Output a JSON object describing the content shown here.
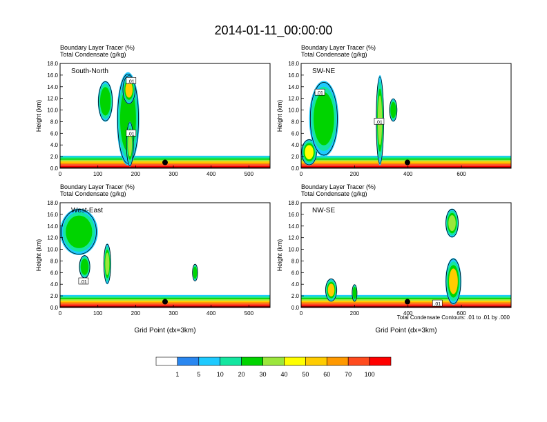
{
  "figure": {
    "title": "2014-01-11_00:00:00",
    "footnote": "Total Condensate Contours: .01 to .01 by .000"
  },
  "chart_data": [
    {
      "type": "heatmap",
      "panel_label": "South-North",
      "title_lines": [
        "Boundary Layer Tracer   (%)",
        "Total Condensate   (g/kg)"
      ],
      "xlabel": "",
      "ylabel": "Height (km)",
      "xlim": [
        0,
        556
      ],
      "ylim": [
        0,
        18
      ],
      "x_ticks": [
        0,
        100,
        200,
        300,
        400,
        500
      ],
      "y_ticks": [
        0,
        2,
        4,
        6,
        8,
        10,
        12,
        14,
        16,
        18
      ],
      "contour_labels": [
        {
          "x": 188,
          "y": 15.0,
          "text": ".01"
        },
        {
          "x": 188,
          "y": 6.0,
          "text": ".01"
        }
      ],
      "marker": {
        "x": 278,
        "y": 1.0
      },
      "regions": [
        {
          "x": [
            100,
            140
          ],
          "y": [
            8,
            15
          ],
          "value": 20
        },
        {
          "x": [
            150,
            210
          ],
          "y": [
            0.5,
            16.5
          ],
          "value": 20
        },
        {
          "x": [
            165,
            200
          ],
          "y": [
            11,
            16
          ],
          "value": 55
        },
        {
          "x": [
            175,
            195
          ],
          "y": [
            0.3,
            8
          ],
          "value": 30
        }
      ]
    },
    {
      "type": "heatmap",
      "panel_label": "SW-NE",
      "title_lines": [
        "Boundary Layer Tracer   (%)",
        "Total Condensate   (g/kg)"
      ],
      "xlabel": "",
      "ylabel": "Height (km)",
      "xlim": [
        0,
        786
      ],
      "ylim": [
        0,
        18
      ],
      "x_ticks": [
        0,
        200,
        400,
        600
      ],
      "y_ticks": [
        0,
        2,
        4,
        6,
        8,
        10,
        12,
        14,
        16,
        18
      ],
      "contour_labels": [
        {
          "x": 70,
          "y": 13.0,
          "text": ".01"
        },
        {
          "x": 292,
          "y": 8.0,
          "text": ".01"
        }
      ],
      "marker": {
        "x": 398,
        "y": 1.0
      },
      "regions": [
        {
          "x": [
            0,
            60
          ],
          "y": [
            0.5,
            5
          ],
          "value": 40
        },
        {
          "x": [
            30,
            140
          ],
          "y": [
            2,
            15
          ],
          "value": 20
        },
        {
          "x": [
            280,
            310
          ],
          "y": [
            0.5,
            16
          ],
          "value": 30
        },
        {
          "x": [
            330,
            360
          ],
          "y": [
            8,
            12
          ],
          "value": 20
        }
      ]
    },
    {
      "type": "heatmap",
      "panel_label": "West-East",
      "title_lines": [
        "Boundary Layer Tracer   (%)",
        "Total Condensate   (g/kg)"
      ],
      "xlabel": "Grid Point (dx=3km)",
      "ylabel": "Height (km)",
      "xlim": [
        0,
        556
      ],
      "ylim": [
        0,
        18
      ],
      "x_ticks": [
        0,
        100,
        200,
        300,
        400,
        500
      ],
      "y_ticks": [
        0,
        2,
        4,
        6,
        8,
        10,
        12,
        14,
        16,
        18
      ],
      "contour_labels": [
        {
          "x": 62,
          "y": 4.5,
          "text": ".01"
        }
      ],
      "marker": {
        "x": 278,
        "y": 1.0
      },
      "regions": [
        {
          "x": [
            0,
            100
          ],
          "y": [
            9,
            17
          ],
          "value": 20
        },
        {
          "x": [
            50,
            80
          ],
          "y": [
            5,
            9
          ],
          "value": 20
        },
        {
          "x": [
            115,
            135
          ],
          "y": [
            4,
            11
          ],
          "value": 30
        },
        {
          "x": [
            350,
            365
          ],
          "y": [
            4.5,
            7.5
          ],
          "value": 20
        }
      ]
    },
    {
      "type": "heatmap",
      "panel_label": "NW-SE",
      "title_lines": [
        "Boundary Layer Tracer   (%)",
        "Total Condensate   (g/kg)"
      ],
      "xlabel": "Grid Point (dx=3km)",
      "ylabel": "Height (km)",
      "xlim": [
        0,
        786
      ],
      "ylim": [
        0,
        18
      ],
      "x_ticks": [
        0,
        200,
        400,
        600
      ],
      "y_ticks": [
        0,
        2,
        4,
        6,
        8,
        10,
        12,
        14,
        16,
        18
      ],
      "contour_labels": [
        {
          "x": 510,
          "y": 0.7,
          "text": ".01"
        }
      ],
      "marker": {
        "x": 398,
        "y": 1.0
      },
      "regions": [
        {
          "x": [
            90,
            135
          ],
          "y": [
            1,
            5
          ],
          "value": 50
        },
        {
          "x": [
            540,
            590
          ],
          "y": [
            12,
            17
          ],
          "value": 30
        },
        {
          "x": [
            540,
            600
          ],
          "y": [
            0.5,
            8.5
          ],
          "value": 55
        },
        {
          "x": [
            190,
            210
          ],
          "y": [
            1,
            4
          ],
          "value": 20
        }
      ]
    }
  ],
  "colorbar": {
    "levels": [
      "1",
      "5",
      "10",
      "20",
      "30",
      "40",
      "50",
      "60",
      "70",
      "100"
    ],
    "colors": [
      "#ffffff",
      "#2a87f0",
      "#1ecaff",
      "#14e6a0",
      "#00d400",
      "#9be63c",
      "#ffff00",
      "#ffcc00",
      "#ff9900",
      "#ff4b1e",
      "#ff0000"
    ]
  },
  "contour_color": "#000000",
  "axis_color": "#000000"
}
